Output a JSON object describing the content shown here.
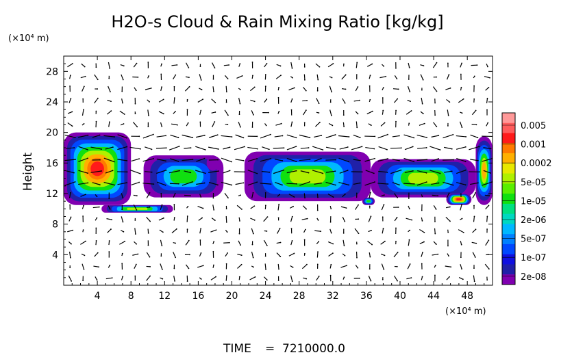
{
  "chart_data": {
    "type": "heatmap",
    "title": "H2O-s Cloud & Rain Mixing Ratio [kg/kg]",
    "ylabel": "Height",
    "xlabel": "",
    "x_unit": "(×10⁴ m)",
    "y_unit": "(×10⁴ m)",
    "xlim": [
      0,
      51
    ],
    "ylim": [
      0,
      30
    ],
    "x_ticks": [
      "4",
      "8",
      "12",
      "16",
      "20",
      "24",
      "28",
      "32",
      "36",
      "40",
      "44",
      "48"
    ],
    "y_ticks": [
      "4",
      "8",
      "12",
      "16",
      "20",
      "24",
      "28"
    ],
    "grid": false,
    "colorbar": {
      "placement": "right",
      "labels": [
        "0.005",
        "0.001",
        "0.0002",
        "5e-05",
        "1e-05",
        "2e-06",
        "5e-07",
        "1e-07",
        "2e-08"
      ],
      "colors": [
        "#ff9999",
        "#ff5c5c",
        "#ff1a1a",
        "#ff7a00",
        "#ffb000",
        "#e8e800",
        "#b0f000",
        "#5aee00",
        "#10e010",
        "#00e080",
        "#00d8c0",
        "#00b8ff",
        "#0080ff",
        "#0048ff",
        "#1010e0",
        "#2020a8",
        "#8000b0"
      ]
    },
    "cloud_regions": [
      {
        "x": [
          0,
          8
        ],
        "y": [
          10.5,
          20
        ],
        "peak": "2e-04 to 0.001"
      },
      {
        "x": [
          4.5,
          13
        ],
        "y": [
          9.5,
          10.5
        ],
        "peak": "1e-04"
      },
      {
        "x": [
          9.5,
          19
        ],
        "y": [
          11.5,
          17
        ],
        "peak": "1e-05"
      },
      {
        "x": [
          17,
          18.5
        ],
        "y": [
          15,
          17
        ],
        "peak": "2e-08"
      },
      {
        "x": [
          21.5,
          36.5
        ],
        "y": [
          11,
          17.5
        ],
        "peak": "5e-05"
      },
      {
        "x": [
          35.5,
          37
        ],
        "y": [
          10.5,
          11.5
        ],
        "peak": "1e-05"
      },
      {
        "x": [
          36.5,
          49
        ],
        "y": [
          11.5,
          16.5
        ],
        "peak": "5e-05"
      },
      {
        "x": [
          45.5,
          48.5
        ],
        "y": [
          10.5,
          12
        ],
        "peak": "0.001"
      },
      {
        "x": [
          49,
          51
        ],
        "y": [
          10.5,
          19.5
        ],
        "peak": "2e-04"
      }
    ],
    "vector_field": "wind vectors"
  },
  "footer": {
    "time_label": "TIME",
    "time_eq": "=",
    "time_value": "7210000.0"
  },
  "colors": {
    "axes": "#000000",
    "background": "#ffffff",
    "vectors": "#000000"
  }
}
